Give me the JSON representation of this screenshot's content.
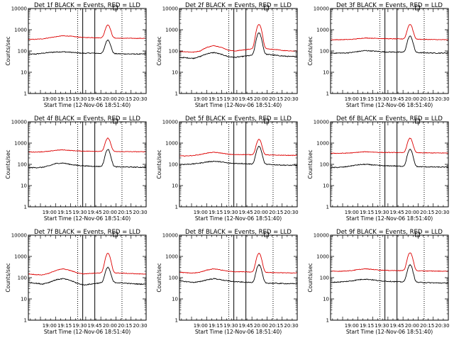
{
  "figure": {
    "background": "#ffffff",
    "series_colors": {
      "events": "#000000",
      "lld": "#dd0000"
    }
  },
  "chart_data": [
    {
      "type": "line",
      "title": "Det 1f BLACK = Events, RED = LLD",
      "ylabel": "Counts/sec",
      "xlabel": "Start Time (12-Nov-06 18:51:40)",
      "ylog": true,
      "ylim": [
        1,
        10000
      ],
      "x_ticks": [
        "19:00",
        "19:15",
        "19:30",
        "19:45",
        "20:00",
        "20:15",
        "20:30"
      ],
      "y_ticks": [
        "1",
        "10",
        "100",
        "1000",
        "10000"
      ],
      "series": [
        {
          "color": "#000000",
          "base": [
            70,
            72,
            78,
            85,
            90,
            92,
            88,
            82,
            78,
            80,
            78,
            76,
            75,
            74,
            73,
            72,
            72,
            72
          ],
          "flare_peak": 330
        },
        {
          "color": "#dd0000",
          "base": [
            350,
            355,
            370,
            420,
            470,
            520,
            500,
            460,
            430,
            430,
            420,
            410,
            405,
            400,
            398,
            396,
            395,
            395
          ],
          "flare_peak": 1700
        }
      ]
    },
    {
      "type": "line",
      "title": "Det 2f BLACK = Events, RED = LLD",
      "ylabel": "Counts/sec",
      "xlabel": "Start Time (12-Nov-06 18:51:40)",
      "ylog": true,
      "ylim": [
        1,
        10000
      ],
      "x_ticks": [
        "19:00",
        "19:15",
        "19:30",
        "19:45",
        "20:00",
        "20:15",
        "20:30"
      ],
      "y_ticks": [
        "1",
        "10",
        "100",
        "1000",
        "10000"
      ],
      "series": [
        {
          "color": "#000000",
          "base": [
            50,
            48,
            45,
            55,
            75,
            85,
            70,
            55,
            50,
            55,
            60,
            65,
            70,
            68,
            62,
            58,
            55,
            55
          ],
          "flare_peak": 700
        },
        {
          "color": "#dd0000",
          "base": [
            95,
            92,
            88,
            100,
            150,
            180,
            150,
            110,
            100,
            110,
            120,
            125,
            130,
            125,
            115,
            105,
            100,
            100
          ],
          "flare_peak": 1800
        }
      ]
    },
    {
      "type": "line",
      "title": "Det 3f BLACK = Events, RED = LLD",
      "ylabel": "Counts/sec",
      "xlabel": "Start Time (12-Nov-06 18:51:40)",
      "ylog": true,
      "ylim": [
        1,
        10000
      ],
      "x_ticks": [
        "19:00",
        "19:15",
        "19:30",
        "19:45",
        "20:00",
        "20:15",
        "20:30"
      ],
      "y_ticks": [
        "1",
        "10",
        "100",
        "1000",
        "10000"
      ],
      "series": [
        {
          "color": "#000000",
          "base": [
            80,
            80,
            80,
            85,
            95,
            105,
            100,
            95,
            90,
            90,
            88,
            86,
            84,
            83,
            82,
            80,
            80,
            80
          ],
          "flare_peak": 500
        },
        {
          "color": "#dd0000",
          "base": [
            340,
            340,
            345,
            350,
            380,
            410,
            400,
            390,
            380,
            375,
            370,
            365,
            360,
            355,
            350,
            345,
            340,
            340
          ],
          "flare_peak": 1800
        }
      ]
    },
    {
      "type": "line",
      "title": "Det 4f BLACK = Events, RED = LLD",
      "ylabel": "Counts/sec",
      "xlabel": "Start Time (12-Nov-06 18:51:40)",
      "ylog": true,
      "ylim": [
        1,
        10000
      ],
      "x_ticks": [
        "19:00",
        "19:15",
        "19:30",
        "19:45",
        "20:00",
        "20:15",
        "20:30"
      ],
      "y_ticks": [
        "1",
        "10",
        "100",
        "1000",
        "10000"
      ],
      "series": [
        {
          "color": "#000000",
          "base": [
            70,
            70,
            72,
            85,
            110,
            115,
            100,
            90,
            85,
            82,
            80,
            78,
            77,
            76,
            75,
            74,
            73,
            73
          ],
          "flare_peak": 500
        },
        {
          "color": "#dd0000",
          "base": [
            380,
            380,
            390,
            410,
            460,
            480,
            450,
            430,
            420,
            415,
            410,
            405,
            400,
            398,
            396,
            394,
            392,
            392
          ],
          "flare_peak": 1700
        }
      ]
    },
    {
      "type": "line",
      "title": "Det 5f BLACK = Events, RED = LLD",
      "ylabel": "Counts/sec",
      "xlabel": "Start Time (12-Nov-06 18:51:40)",
      "ylog": true,
      "ylim": [
        1,
        10000
      ],
      "x_ticks": [
        "19:00",
        "19:15",
        "19:30",
        "19:45",
        "20:00",
        "20:15",
        "20:30"
      ],
      "y_ticks": [
        "1",
        "10",
        "100",
        "1000",
        "10000"
      ],
      "series": [
        {
          "color": "#000000",
          "base": [
            100,
            100,
            105,
            115,
            130,
            140,
            130,
            115,
            110,
            110,
            105,
            100,
            100,
            98,
            95,
            92,
            90,
            90
          ],
          "flare_peak": 700
        },
        {
          "color": "#dd0000",
          "base": [
            250,
            250,
            260,
            290,
            340,
            370,
            340,
            300,
            285,
            290,
            285,
            280,
            280,
            275,
            270,
            268,
            265,
            265
          ],
          "flare_peak": 1500
        }
      ]
    },
    {
      "type": "line",
      "title": "Det 6f BLACK = Events, RED = LLD",
      "ylabel": "Counts/sec",
      "xlabel": "Start Time (12-Nov-06 18:51:40)",
      "ylog": true,
      "ylim": [
        1,
        10000
      ],
      "x_ticks": [
        "19:00",
        "19:15",
        "19:30",
        "19:45",
        "20:00",
        "20:15",
        "20:30"
      ],
      "y_ticks": [
        "1",
        "10",
        "100",
        "1000",
        "10000"
      ],
      "series": [
        {
          "color": "#000000",
          "base": [
            70,
            72,
            75,
            85,
            95,
            100,
            95,
            88,
            85,
            85,
            82,
            80,
            78,
            77,
            76,
            75,
            74,
            74
          ],
          "flare_peak": 500
        },
        {
          "color": "#dd0000",
          "base": [
            330,
            330,
            335,
            345,
            370,
            390,
            380,
            365,
            360,
            360,
            355,
            352,
            350,
            348,
            346,
            344,
            342,
            342
          ],
          "flare_peak": 1700
        }
      ]
    },
    {
      "type": "line",
      "title": "Det 7f BLACK = Events, RED = LLD",
      "ylabel": "Counts/sec",
      "xlabel": "Start Time (12-Nov-06 18:51:40)",
      "ylog": true,
      "ylim": [
        1,
        10000
      ],
      "x_ticks": [
        "19:00",
        "19:15",
        "19:30",
        "19:45",
        "20:00",
        "20:15",
        "20:30"
      ],
      "y_ticks": [
        "1",
        "10",
        "100",
        "1000",
        "10000"
      ],
      "series": [
        {
          "color": "#000000",
          "base": [
            60,
            55,
            50,
            60,
            80,
            90,
            75,
            55,
            45,
            50,
            55,
            58,
            60,
            58,
            55,
            52,
            50,
            50
          ],
          "flare_peak": 300
        },
        {
          "color": "#dd0000",
          "base": [
            150,
            140,
            135,
            160,
            220,
            260,
            220,
            170,
            150,
            160,
            165,
            170,
            170,
            165,
            160,
            155,
            150,
            150
          ],
          "flare_peak": 1400
        }
      ]
    },
    {
      "type": "line",
      "title": "Det 8f BLACK = Events, RED = LLD",
      "ylabel": "Counts/sec",
      "xlabel": "Start Time (12-Nov-06 18:51:40)",
      "ylog": true,
      "ylim": [
        1,
        10000
      ],
      "x_ticks": [
        "19:00",
        "19:15",
        "19:30",
        "19:45",
        "20:00",
        "20:15",
        "20:30"
      ],
      "y_ticks": [
        "1",
        "10",
        "100",
        "1000",
        "10000"
      ],
      "series": [
        {
          "color": "#000000",
          "base": [
            70,
            65,
            60,
            65,
            80,
            90,
            80,
            70,
            65,
            62,
            60,
            58,
            56,
            55,
            54,
            53,
            52,
            52
          ],
          "flare_peak": 400
        },
        {
          "color": "#dd0000",
          "base": [
            180,
            170,
            165,
            180,
            230,
            260,
            230,
            200,
            190,
            190,
            185,
            180,
            178,
            175,
            172,
            170,
            168,
            168
          ],
          "flare_peak": 1400
        }
      ]
    },
    {
      "type": "line",
      "title": "Det 9f BLACK = Events, RED = LLD",
      "ylabel": "Counts/sec",
      "xlabel": "Start Time (12-Nov-06 18:51:40)",
      "ylog": true,
      "ylim": [
        1,
        10000
      ],
      "x_ticks": [
        "19:00",
        "19:15",
        "19:30",
        "19:45",
        "20:00",
        "20:15",
        "20:30"
      ],
      "y_ticks": [
        "1",
        "10",
        "100",
        "1000",
        "10000"
      ],
      "series": [
        {
          "color": "#000000",
          "base": [
            60,
            62,
            65,
            70,
            80,
            85,
            80,
            72,
            68,
            66,
            64,
            62,
            60,
            60,
            58,
            57,
            56,
            56
          ],
          "flare_peak": 400
        },
        {
          "color": "#dd0000",
          "base": [
            200,
            200,
            205,
            215,
            240,
            260,
            245,
            230,
            220,
            218,
            215,
            212,
            210,
            208,
            206,
            204,
            202,
            202
          ],
          "flare_peak": 1500
        }
      ]
    }
  ]
}
